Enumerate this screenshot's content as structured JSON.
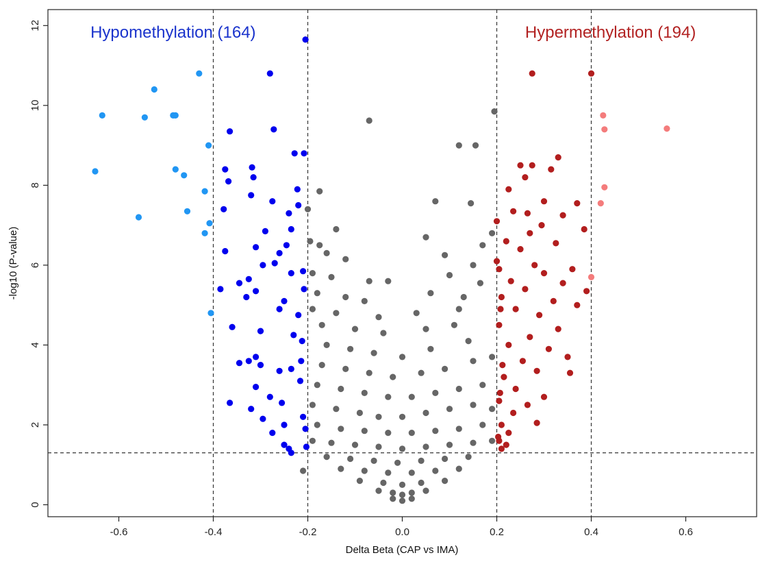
{
  "chart_data": {
    "type": "scatter",
    "title": "",
    "xlabel": "Delta Beta (CAP vs IMA)",
    "ylabel": "-log10 (P-value)",
    "xlim": [
      -0.75,
      0.75
    ],
    "ylim": [
      -0.3,
      12.4
    ],
    "x_ticks": [
      -0.6,
      -0.4,
      -0.2,
      0.0,
      0.2,
      0.4,
      0.6
    ],
    "x_tick_labels": [
      "-0.6",
      "-0.4",
      "-0.2",
      "0.0",
      "0.2",
      "0.4",
      "0.6"
    ],
    "y_ticks": [
      0,
      2,
      4,
      6,
      8,
      10,
      12
    ],
    "y_tick_labels": [
      "0",
      "2",
      "4",
      "6",
      "8",
      "10",
      "12"
    ],
    "grid": false,
    "reference_lines": {
      "vertical": [
        -0.4,
        -0.2,
        0.2,
        0.4
      ],
      "horizontal": [
        1.3
      ],
      "style": "dashed"
    },
    "annotations": [
      {
        "text": "Hypomethylation (164)",
        "x": -0.66,
        "y": 11.7,
        "color": "#1a33cc"
      },
      {
        "text": "Hypermethylation (194)",
        "x": 0.26,
        "y": 11.7,
        "color": "#b22222"
      }
    ],
    "series": [
      {
        "color": "#2196f3",
        "points": [
          [
            -0.65,
            8.35
          ],
          [
            -0.635,
            9.75
          ],
          [
            -0.558,
            7.2
          ],
          [
            -0.545,
            9.7
          ],
          [
            -0.525,
            10.4
          ],
          [
            -0.485,
            9.75
          ],
          [
            -0.48,
            9.75
          ],
          [
            -0.48,
            8.4
          ],
          [
            -0.462,
            8.25
          ],
          [
            -0.455,
            7.35
          ],
          [
            -0.43,
            10.8
          ],
          [
            -0.418,
            7.85
          ],
          [
            -0.418,
            6.8
          ],
          [
            -0.41,
            9.0
          ],
          [
            -0.408,
            7.05
          ],
          [
            -0.405,
            4.8
          ]
        ]
      },
      {
        "color": "#0000ee",
        "points": [
          [
            -0.205,
            11.65
          ],
          [
            -0.28,
            10.8
          ],
          [
            -0.272,
            9.4
          ],
          [
            -0.365,
            9.35
          ],
          [
            -0.228,
            8.8
          ],
          [
            -0.208,
            8.8
          ],
          [
            -0.375,
            8.4
          ],
          [
            -0.318,
            8.45
          ],
          [
            -0.368,
            8.1
          ],
          [
            -0.315,
            8.2
          ],
          [
            -0.222,
            7.9
          ],
          [
            -0.32,
            7.75
          ],
          [
            -0.275,
            7.6
          ],
          [
            -0.378,
            7.4
          ],
          [
            -0.22,
            7.5
          ],
          [
            -0.24,
            7.3
          ],
          [
            -0.29,
            6.85
          ],
          [
            -0.235,
            6.9
          ],
          [
            -0.31,
            6.45
          ],
          [
            -0.375,
            6.35
          ],
          [
            -0.245,
            6.5
          ],
          [
            -0.26,
            6.3
          ],
          [
            -0.27,
            6.05
          ],
          [
            -0.295,
            6.0
          ],
          [
            -0.325,
            5.65
          ],
          [
            -0.345,
            5.55
          ],
          [
            -0.235,
            5.8
          ],
          [
            -0.21,
            5.85
          ],
          [
            -0.385,
            5.4
          ],
          [
            -0.33,
            5.2
          ],
          [
            -0.31,
            5.35
          ],
          [
            -0.25,
            5.1
          ],
          [
            -0.26,
            4.9
          ],
          [
            -0.22,
            4.75
          ],
          [
            -0.36,
            4.45
          ],
          [
            -0.3,
            4.35
          ],
          [
            -0.23,
            4.25
          ],
          [
            -0.31,
            3.7
          ],
          [
            -0.345,
            3.55
          ],
          [
            -0.325,
            3.6
          ],
          [
            -0.3,
            3.5
          ],
          [
            -0.26,
            3.35
          ],
          [
            -0.235,
            3.4
          ],
          [
            -0.31,
            2.95
          ],
          [
            -0.28,
            2.7
          ],
          [
            -0.255,
            2.55
          ],
          [
            -0.365,
            2.55
          ],
          [
            -0.32,
            2.4
          ],
          [
            -0.295,
            2.15
          ],
          [
            -0.25,
            2.0
          ],
          [
            -0.275,
            1.8
          ],
          [
            -0.25,
            1.5
          ],
          [
            -0.24,
            1.4
          ],
          [
            -0.235,
            1.3
          ],
          [
            -0.208,
            5.4
          ],
          [
            -0.212,
            4.1
          ],
          [
            -0.214,
            3.6
          ],
          [
            -0.216,
            3.1
          ],
          [
            -0.21,
            2.2
          ],
          [
            -0.205,
            1.9
          ],
          [
            -0.203,
            1.45
          ]
        ]
      },
      {
        "color": "#666666",
        "points": [
          [
            -0.07,
            9.62
          ],
          [
            0.195,
            9.85
          ],
          [
            0.12,
            9.0
          ],
          [
            0.155,
            9.0
          ],
          [
            -0.175,
            7.85
          ],
          [
            0.07,
            7.6
          ],
          [
            0.145,
            7.55
          ],
          [
            -0.2,
            7.4
          ],
          [
            -0.14,
            6.9
          ],
          [
            0.19,
            6.8
          ],
          [
            -0.195,
            6.6
          ],
          [
            -0.175,
            6.5
          ],
          [
            0.05,
            6.7
          ],
          [
            0.17,
            6.5
          ],
          [
            -0.16,
            6.3
          ],
          [
            -0.12,
            6.15
          ],
          [
            0.09,
            6.25
          ],
          [
            0.15,
            6.0
          ],
          [
            -0.19,
            5.8
          ],
          [
            -0.15,
            5.7
          ],
          [
            -0.07,
            5.6
          ],
          [
            -0.03,
            5.6
          ],
          [
            0.1,
            5.75
          ],
          [
            0.165,
            5.55
          ],
          [
            -0.18,
            5.3
          ],
          [
            -0.12,
            5.2
          ],
          [
            -0.08,
            5.1
          ],
          [
            0.06,
            5.3
          ],
          [
            0.13,
            5.2
          ],
          [
            -0.19,
            4.9
          ],
          [
            -0.14,
            4.8
          ],
          [
            -0.05,
            4.7
          ],
          [
            0.03,
            4.8
          ],
          [
            0.12,
            4.9
          ],
          [
            -0.17,
            4.5
          ],
          [
            -0.1,
            4.4
          ],
          [
            -0.04,
            4.3
          ],
          [
            0.05,
            4.4
          ],
          [
            0.11,
            4.5
          ],
          [
            -0.16,
            4.0
          ],
          [
            -0.11,
            3.9
          ],
          [
            -0.06,
            3.8
          ],
          [
            0.0,
            3.7
          ],
          [
            0.06,
            3.9
          ],
          [
            0.14,
            4.1
          ],
          [
            -0.17,
            3.5
          ],
          [
            -0.12,
            3.4
          ],
          [
            -0.07,
            3.3
          ],
          [
            -0.02,
            3.2
          ],
          [
            0.04,
            3.3
          ],
          [
            0.09,
            3.4
          ],
          [
            0.15,
            3.6
          ],
          [
            0.19,
            3.7
          ],
          [
            -0.18,
            3.0
          ],
          [
            -0.13,
            2.9
          ],
          [
            -0.08,
            2.8
          ],
          [
            -0.03,
            2.7
          ],
          [
            0.02,
            2.7
          ],
          [
            0.07,
            2.8
          ],
          [
            0.12,
            2.9
          ],
          [
            0.17,
            3.0
          ],
          [
            -0.19,
            2.5
          ],
          [
            -0.14,
            2.4
          ],
          [
            -0.09,
            2.3
          ],
          [
            -0.05,
            2.2
          ],
          [
            0.0,
            2.2
          ],
          [
            0.05,
            2.3
          ],
          [
            0.1,
            2.4
          ],
          [
            0.15,
            2.5
          ],
          [
            0.19,
            2.4
          ],
          [
            -0.18,
            2.0
          ],
          [
            -0.13,
            1.9
          ],
          [
            -0.08,
            1.85
          ],
          [
            -0.03,
            1.8
          ],
          [
            0.02,
            1.8
          ],
          [
            0.07,
            1.85
          ],
          [
            0.12,
            1.9
          ],
          [
            0.17,
            2.0
          ],
          [
            -0.19,
            1.6
          ],
          [
            -0.15,
            1.55
          ],
          [
            -0.1,
            1.5
          ],
          [
            -0.05,
            1.45
          ],
          [
            0.0,
            1.4
          ],
          [
            0.05,
            1.45
          ],
          [
            0.1,
            1.5
          ],
          [
            0.15,
            1.55
          ],
          [
            0.19,
            1.6
          ],
          [
            -0.16,
            1.2
          ],
          [
            -0.11,
            1.15
          ],
          [
            -0.06,
            1.1
          ],
          [
            -0.01,
            1.05
          ],
          [
            0.04,
            1.1
          ],
          [
            0.09,
            1.15
          ],
          [
            0.14,
            1.2
          ],
          [
            -0.13,
            0.9
          ],
          [
            -0.08,
            0.85
          ],
          [
            -0.03,
            0.8
          ],
          [
            0.02,
            0.8
          ],
          [
            0.07,
            0.85
          ],
          [
            0.12,
            0.9
          ],
          [
            -0.09,
            0.6
          ],
          [
            -0.04,
            0.55
          ],
          [
            0.0,
            0.5
          ],
          [
            0.04,
            0.55
          ],
          [
            0.09,
            0.6
          ],
          [
            -0.05,
            0.35
          ],
          [
            -0.02,
            0.3
          ],
          [
            0.0,
            0.25
          ],
          [
            0.02,
            0.3
          ],
          [
            0.05,
            0.35
          ],
          [
            -0.02,
            0.15
          ],
          [
            0.0,
            0.1
          ],
          [
            0.02,
            0.15
          ],
          [
            -0.21,
            0.85
          ]
        ]
      },
      {
        "color": "#b21e1e",
        "points": [
          [
            0.275,
            10.8
          ],
          [
            0.4,
            10.8
          ],
          [
            0.33,
            8.7
          ],
          [
            0.25,
            8.5
          ],
          [
            0.275,
            8.5
          ],
          [
            0.315,
            8.4
          ],
          [
            0.26,
            8.2
          ],
          [
            0.225,
            7.9
          ],
          [
            0.3,
            7.6
          ],
          [
            0.37,
            7.55
          ],
          [
            0.235,
            7.35
          ],
          [
            0.265,
            7.3
          ],
          [
            0.34,
            7.25
          ],
          [
            0.2,
            7.1
          ],
          [
            0.295,
            7.0
          ],
          [
            0.385,
            6.9
          ],
          [
            0.27,
            6.8
          ],
          [
            0.22,
            6.6
          ],
          [
            0.325,
            6.55
          ],
          [
            0.25,
            6.4
          ],
          [
            0.2,
            6.1
          ],
          [
            0.28,
            6.0
          ],
          [
            0.36,
            5.9
          ],
          [
            0.3,
            5.8
          ],
          [
            0.23,
            5.6
          ],
          [
            0.34,
            5.55
          ],
          [
            0.39,
            5.35
          ],
          [
            0.26,
            5.4
          ],
          [
            0.21,
            5.2
          ],
          [
            0.32,
            5.1
          ],
          [
            0.37,
            5.0
          ],
          [
            0.24,
            4.9
          ],
          [
            0.29,
            4.75
          ],
          [
            0.205,
            4.5
          ],
          [
            0.33,
            4.4
          ],
          [
            0.27,
            4.2
          ],
          [
            0.225,
            4.0
          ],
          [
            0.31,
            3.9
          ],
          [
            0.35,
            3.7
          ],
          [
            0.255,
            3.6
          ],
          [
            0.285,
            3.35
          ],
          [
            0.355,
            3.3
          ],
          [
            0.215,
            3.2
          ],
          [
            0.24,
            2.9
          ],
          [
            0.3,
            2.7
          ],
          [
            0.205,
            2.6
          ],
          [
            0.265,
            2.5
          ],
          [
            0.235,
            2.3
          ],
          [
            0.285,
            2.05
          ],
          [
            0.21,
            2.0
          ],
          [
            0.225,
            1.8
          ],
          [
            0.205,
            1.6
          ],
          [
            0.22,
            1.5
          ],
          [
            0.21,
            1.4
          ],
          [
            0.205,
            5.9
          ],
          [
            0.208,
            4.9
          ],
          [
            0.212,
            3.5
          ],
          [
            0.207,
            2.8
          ],
          [
            0.203,
            1.7
          ]
        ]
      },
      {
        "color": "#f47c7c",
        "points": [
          [
            0.425,
            9.75
          ],
          [
            0.428,
            9.4
          ],
          [
            0.56,
            9.42
          ],
          [
            0.428,
            7.95
          ],
          [
            0.42,
            7.55
          ],
          [
            0.4,
            5.7
          ]
        ]
      }
    ]
  }
}
